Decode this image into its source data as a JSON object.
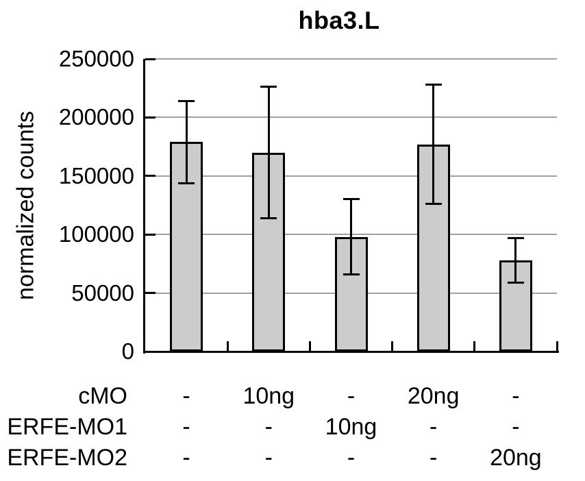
{
  "chart_data": {
    "type": "bar",
    "title": "hba3.L",
    "ylabel": "normalized counts",
    "xlabel": "",
    "ylim": [
      0,
      250000
    ],
    "grid": true,
    "legend": false,
    "yticks": [
      {
        "value": 0,
        "label": "0"
      },
      {
        "value": 50000,
        "label": "50000"
      },
      {
        "value": 100000,
        "label": "100000"
      },
      {
        "value": 150000,
        "label": "150000"
      },
      {
        "value": 200000,
        "label": "200000"
      },
      {
        "value": 250000,
        "label": "250000"
      }
    ],
    "series": [
      {
        "name": "normalized counts",
        "values": [
          179000,
          170000,
          98000,
          177000,
          78000
        ],
        "errors": [
          35000,
          56000,
          32000,
          51000,
          19000
        ]
      }
    ],
    "condition_table": {
      "rows": [
        {
          "label": "cMO",
          "values": [
            "-",
            "10ng",
            "-",
            "20ng",
            "-"
          ]
        },
        {
          "label": "ERFE-MO1",
          "values": [
            "-",
            "-",
            "10ng",
            "-",
            "-"
          ]
        },
        {
          "label": "ERFE-MO2",
          "values": [
            "-",
            "-",
            "-",
            "-",
            "20ng"
          ]
        }
      ]
    },
    "colors": {
      "bar_fill": "#cccccc",
      "bar_border": "#000000",
      "gridline": "#a0a0a0",
      "axis": "#000000",
      "error_bar": "#000000",
      "text": "#000000"
    }
  }
}
